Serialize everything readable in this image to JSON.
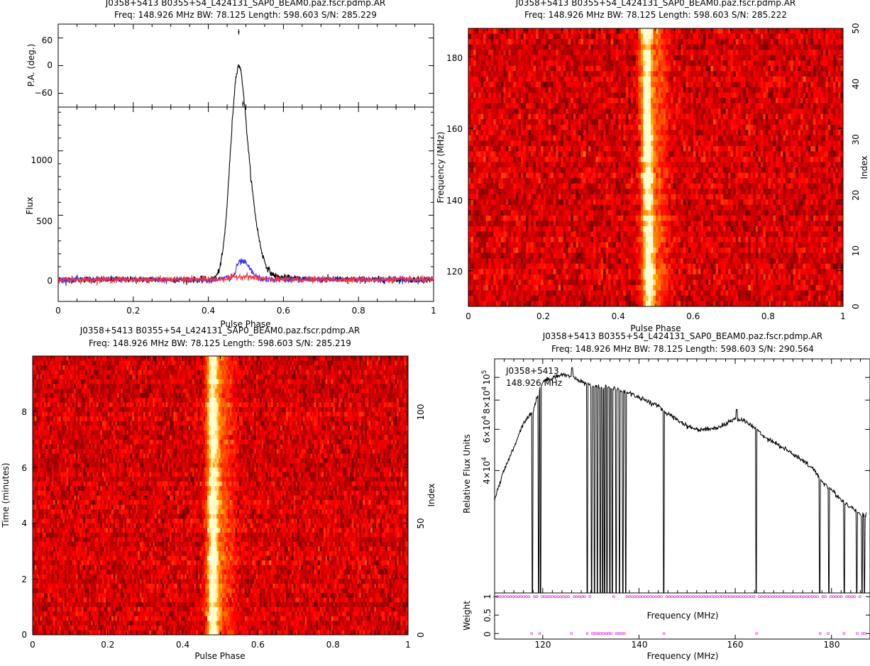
{
  "chart_data": [
    {
      "panel": "profile",
      "type": "line",
      "title": "J0358+5413  B0355+54_L424131_SAP0_BEAM0.paz.fscr.pdmp.AR",
      "subtitle": "Freq: 148.926 MHz BW: 78.125 Length: 598.603 S/N: 285.229",
      "xlabel": "Pulse Phase",
      "ylabel": "Flux",
      "ylabel_pa": "P.A. (deg.)",
      "xlim": [
        0,
        1
      ],
      "ylim": [
        -170,
        1340
      ],
      "pa_ylim": [
        -90,
        90
      ],
      "xticks": [
        "0",
        "0.2",
        "0.4",
        "0.6",
        "0.8",
        "1"
      ],
      "yticks": [
        "0",
        "500",
        "1000"
      ],
      "pa_yticks": [
        "60",
        "0",
        "−60"
      ],
      "pa_points": [
        {
          "x": 0.481,
          "y": 73
        },
        {
          "x": 0.492,
          "y": -83
        }
      ],
      "series": [
        {
          "color": "#000000",
          "peak": 1330,
          "peak_phase": 0.477,
          "width": 0.02,
          "shoulder_phase": 0.505,
          "shoulder": 520
        },
        {
          "color": "#3333ff",
          "peak": 140,
          "peak_phase": 0.49,
          "width": 0.02
        },
        {
          "color": "#ff3333",
          "peak": 25,
          "peak_phase": 0.49,
          "width": 0.03
        }
      ]
    },
    {
      "panel": "freq_phase",
      "type": "heatmap",
      "title": "J0358+5413  B0355+54_L424131_SAP0_BEAM0.paz.fscr.pdmp.AR",
      "subtitle": "Freq: 148.926 MHz BW: 78.125 Length: 598.603 S/N: 285.222",
      "xlabel": "Pulse Phase",
      "ylabel": "Frequency (MHz)",
      "ylabel_right": "Index",
      "xlim": [
        0,
        1
      ],
      "ylim": [
        110,
        188
      ],
      "xticks": [
        "0",
        "0.2",
        "0.4",
        "0.6",
        "0.8",
        "1"
      ],
      "yticks": [
        "120",
        "140",
        "160",
        "180"
      ],
      "rticks": [
        "0",
        "10",
        "20",
        "30",
        "40",
        "50"
      ],
      "pulse_phase": 0.478,
      "colormap": "heat"
    },
    {
      "panel": "time_phase",
      "type": "heatmap",
      "title": "J0358+5413  B0355+54_L424131_SAP0_BEAM0.paz.fscr.pdmp.AR",
      "subtitle": "Freq: 148.926 MHz BW: 78.125 Length: 598.603 S/N: 285.219",
      "xlabel": "Pulse Phase",
      "ylabel": "Time (minutes)",
      "ylabel_right": "Index",
      "xlim": [
        0,
        1
      ],
      "ylim": [
        0,
        9.98
      ],
      "xticks": [
        "0",
        "0.2",
        "0.4",
        "0.6",
        "0.8",
        "1"
      ],
      "yticks": [
        "0",
        "2",
        "4",
        "6",
        "8"
      ],
      "rticks": [
        "0",
        "50",
        "100"
      ],
      "pulse_phase": 0.48,
      "colormap": "heat"
    },
    {
      "panel": "bandpass",
      "type": "line",
      "title": "J0358+5413  B0355+54_L424131_SAP0_BEAM0.paz.fscr.pdmp.AR",
      "subtitle": "Freq: 148.926 MHz BW: 78.125 Length: 598.603 S/N: 290.564",
      "annotation_source": "J0358+5413",
      "annotation_freq": "148.926 MHz",
      "xlabel": "Frequency (MHz)",
      "ylabel": "Relative Flux Units",
      "ylabel_weight": "Weight",
      "weight_inner_label": "Frequency (MHz)",
      "xlim": [
        110,
        188
      ],
      "ylim": [
        12000,
        120000
      ],
      "weight_ylim": [
        -0.15,
        1.1
      ],
      "xticks": [
        "120",
        "140",
        "160",
        "180"
      ],
      "yticks": [
        {
          "mantissa": "4×10",
          "exp": "4",
          "value": 40000
        },
        {
          "mantissa": "6×10",
          "exp": "4",
          "value": 60000
        },
        {
          "mantissa": "8×10",
          "exp": "4",
          "value": 80000
        },
        {
          "mantissa": "10",
          "exp": "5",
          "value": 100000
        }
      ],
      "weight_yticks": [
        "0",
        "0.5",
        "1"
      ],
      "x": [
        110,
        112,
        114,
        116,
        118,
        120,
        122,
        124,
        126,
        128,
        130,
        132,
        134,
        136,
        138,
        140,
        142,
        144,
        146,
        148,
        150,
        152,
        154,
        156,
        158,
        160,
        162,
        164,
        166,
        168,
        170,
        172,
        174,
        176,
        177.3,
        178,
        180,
        182,
        184,
        186
      ],
      "y": [
        30000,
        40000,
        50000,
        64000,
        72000,
        96000,
        100000,
        103000,
        101000,
        96000,
        92000,
        91000,
        91000,
        88000,
        86000,
        82000,
        79000,
        75000,
        70000,
        66000,
        62000,
        60000,
        60000,
        61000,
        63000,
        67000,
        65000,
        61000,
        56000,
        53000,
        50000,
        47000,
        44000,
        41000,
        38000,
        36000,
        33000,
        30000,
        28000,
        26000
      ],
      "zapped_freqs": [
        117.8,
        119.1,
        119.5,
        126.0,
        129.2,
        130.1,
        130.7,
        131.3,
        131.9,
        132.4,
        132.8,
        133.3,
        133.9,
        134.4,
        135.2,
        135.9,
        136.6,
        137.2,
        145.1,
        164.3,
        177.5,
        179.4,
        182.6,
        185.2,
        186.3,
        186.8
      ],
      "spike": {
        "x": 160.3,
        "y": 73000
      },
      "spike2": {
        "x": 126.1,
        "y": 110000
      },
      "weight_color": "#e040e0"
    }
  ]
}
